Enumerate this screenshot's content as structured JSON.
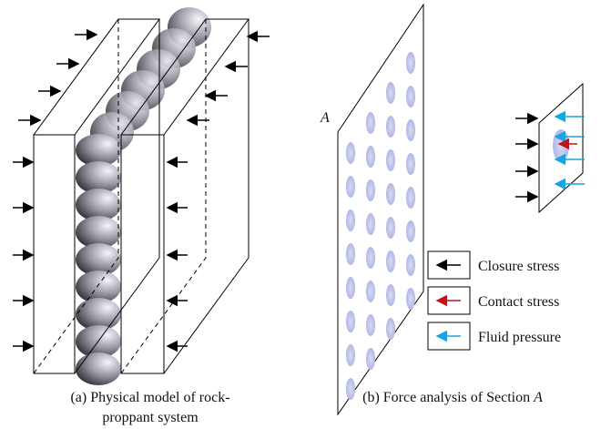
{
  "figure": {
    "label_section": "A",
    "legend": [
      "Closure stress",
      "Contact stress",
      "Fluid pressure"
    ],
    "caption_a": [
      "(a) Physical model of rock-",
      "proppant system"
    ],
    "caption_b": {
      "text": "(b) Force analysis of Section ",
      "emphasis": "A"
    }
  }
}
